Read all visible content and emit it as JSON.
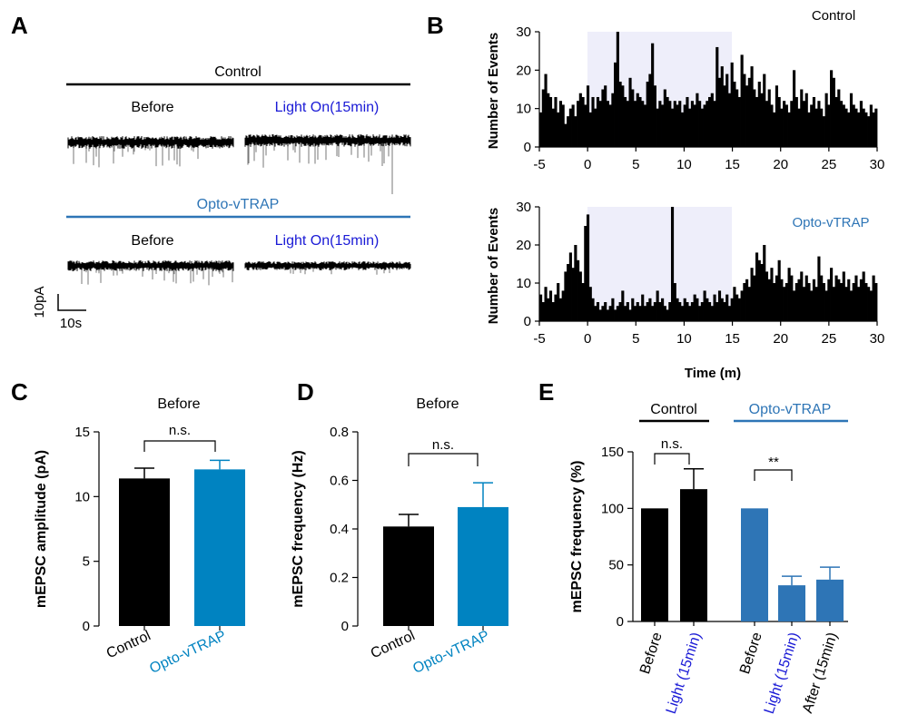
{
  "colors": {
    "black": "#000000",
    "blue_text": "#1a1ad6",
    "opto_blue": "#2e75b6",
    "bar_blue": "#0083c1",
    "trace_gray": "#777777",
    "light_shade": "#eeeefa"
  },
  "panels": {
    "a": "A",
    "b": "B",
    "c": "C",
    "d": "D",
    "e": "E"
  },
  "panel_a": {
    "control_label": "Control",
    "opto_label": "Opto-vTRAP",
    "before_label": "Before",
    "light_label": "Light On(15min)",
    "scale_y": "10pA",
    "scale_x": "10s"
  },
  "panel_b": {
    "ylabel": "Number of Events",
    "xlabel": "Time (m)",
    "control_label": "Control",
    "opto_label": "Opto-vTRAP",
    "xticks": [
      "-5",
      "0",
      "5",
      "10",
      "15",
      "20",
      "25",
      "30"
    ],
    "yticks": [
      "0",
      "10",
      "20",
      "30"
    ]
  },
  "chart_data": [
    {
      "panel": "B-top",
      "type": "bar",
      "x_range": [
        -5,
        30
      ],
      "ylim": [
        0,
        30
      ],
      "shaded_interval": [
        0,
        15
      ],
      "series": [
        {
          "values": [
            9,
            15,
            19,
            14,
            13,
            10,
            13,
            9,
            12,
            11,
            6,
            8,
            10,
            11,
            8,
            12,
            14,
            13,
            11,
            16,
            9,
            13,
            10,
            13,
            12,
            15,
            16,
            12,
            11,
            14,
            22,
            30,
            17,
            16,
            13,
            12,
            18,
            15,
            12,
            14,
            13,
            12,
            11,
            17,
            19,
            27,
            16,
            10,
            12,
            11,
            15,
            13,
            12,
            10,
            12,
            11,
            12,
            9,
            11,
            13,
            10,
            12,
            11,
            14,
            12,
            10,
            11,
            12,
            13,
            14,
            12,
            26,
            18,
            21,
            16,
            19,
            14,
            22,
            17,
            15,
            13,
            24,
            19,
            16,
            18,
            21,
            15,
            13,
            17,
            14,
            19,
            12,
            15,
            11,
            9,
            16,
            13,
            10,
            12,
            11,
            9,
            12,
            20,
            13,
            10,
            15,
            12,
            14,
            9,
            11,
            13,
            10,
            12,
            10,
            8,
            14,
            11,
            20,
            18,
            13,
            15,
            12,
            11,
            10,
            9,
            14,
            11,
            10,
            9,
            12,
            10,
            9,
            8,
            11,
            9,
            10
          ]
        }
      ]
    },
    {
      "panel": "B-bottom",
      "type": "bar",
      "x_range": [
        -5,
        30
      ],
      "ylim": [
        0,
        30
      ],
      "shaded_interval": [
        0,
        15
      ],
      "series": [
        {
          "values": [
            7,
            5,
            9,
            6,
            8,
            5,
            7,
            10,
            6,
            8,
            13,
            15,
            18,
            14,
            20,
            16,
            13,
            10,
            25,
            28,
            9,
            6,
            4,
            5,
            3,
            4,
            5,
            3,
            4,
            6,
            3,
            4,
            5,
            8,
            4,
            5,
            3,
            6,
            4,
            5,
            4,
            7,
            4,
            5,
            6,
            4,
            5,
            8,
            5,
            6,
            4,
            3,
            5,
            30,
            10,
            6,
            5,
            4,
            6,
            5,
            4,
            5,
            7,
            6,
            4,
            5,
            8,
            6,
            5,
            4,
            7,
            5,
            8,
            6,
            5,
            7,
            4,
            6,
            9,
            7,
            6,
            8,
            10,
            11,
            9,
            14,
            12,
            18,
            16,
            15,
            20,
            13,
            11,
            14,
            10,
            12,
            16,
            11,
            9,
            10,
            14,
            12,
            8,
            10,
            11,
            13,
            9,
            12,
            10,
            8,
            11,
            9,
            17,
            12,
            10,
            8,
            11,
            14,
            9,
            12,
            11,
            10,
            13,
            9,
            11,
            8,
            10,
            12,
            9,
            11,
            13,
            10,
            9,
            8,
            12,
            10
          ]
        }
      ]
    },
    {
      "panel": "C",
      "type": "bar",
      "title": "Before",
      "ylabel": "mEPSC amplitude (pA)",
      "ylim": [
        0,
        15
      ],
      "yticks": [
        "0",
        "5",
        "10",
        "15"
      ],
      "categories": [
        "Control",
        "Opto-vTRAP"
      ],
      "values": [
        11.4,
        12.1
      ],
      "errors": [
        0.8,
        0.7
      ],
      "annotation": "n.s."
    },
    {
      "panel": "D",
      "type": "bar",
      "title": "Before",
      "ylabel": "mEPSC frequency (Hz)",
      "ylim": [
        0,
        0.8
      ],
      "yticks": [
        "0",
        "0.2",
        "0.4",
        "0.6",
        "0.8"
      ],
      "categories": [
        "Control",
        "Opto-vTRAP"
      ],
      "values": [
        0.41,
        0.49
      ],
      "errors": [
        0.05,
        0.1
      ],
      "annotation": "n.s."
    },
    {
      "panel": "E",
      "type": "bar",
      "ylabel": "mEPSC frequency (%)",
      "ylim": [
        0,
        150
      ],
      "yticks": [
        "0",
        "50",
        "100",
        "150"
      ],
      "group_labels": [
        "Control",
        "Opto-vTRAP"
      ],
      "categories": [
        "Before",
        "Light (15min)",
        "Before",
        "Light (15min)",
        "After (15min)"
      ],
      "values": [
        100,
        117,
        100,
        32,
        37
      ],
      "errors": [
        0,
        18,
        0,
        8,
        11
      ],
      "annotations": [
        "n.s.",
        "**"
      ]
    }
  ]
}
